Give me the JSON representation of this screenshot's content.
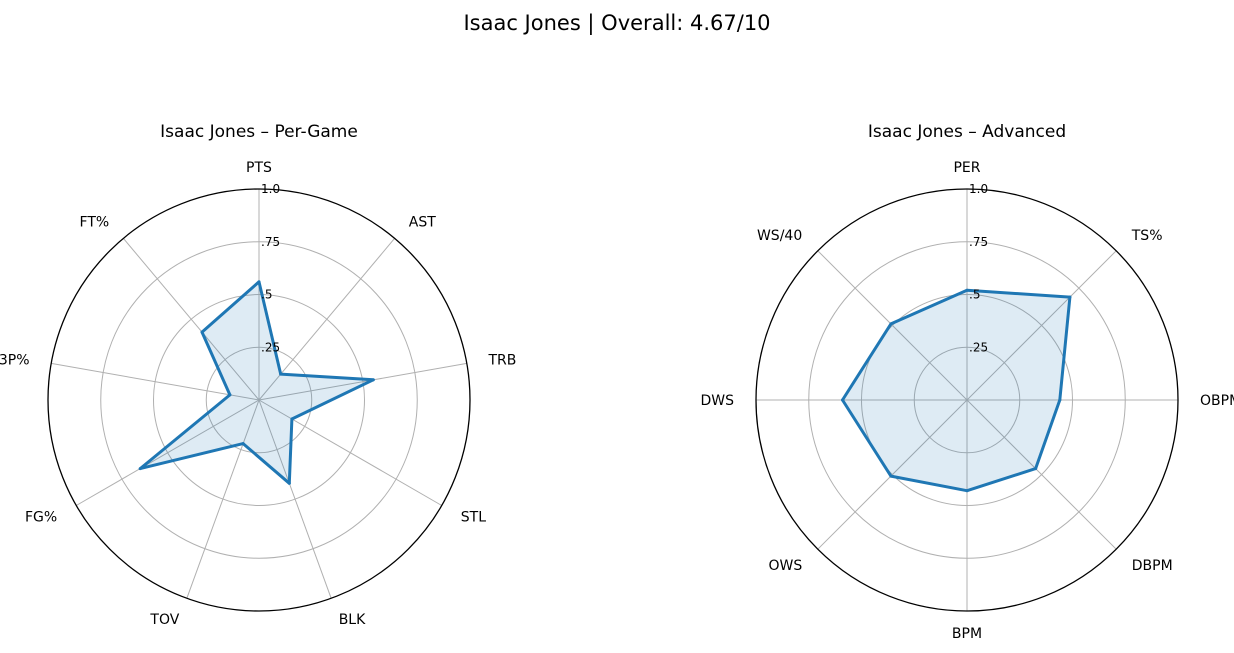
{
  "suptitle": "Isaac Jones | Overall: 4.67/10",
  "chart_data": [
    {
      "type": "radar",
      "title": "Isaac Jones – Per-Game",
      "categories": [
        "PTS",
        "AST",
        "TRB",
        "STL",
        "BLK",
        "TOV",
        "FG%",
        "3P%",
        "FT%"
      ],
      "values": [
        0.56,
        0.16,
        0.55,
        0.18,
        0.42,
        0.22,
        0.65,
        0.14,
        0.42
      ],
      "rlim": [
        0,
        1.0
      ],
      "rticks": [
        0.25,
        0.5,
        0.75,
        1.0
      ],
      "rtick_labels": [
        ".25",
        ".5",
        ".75",
        "1.0"
      ],
      "grid": true,
      "line_color": "#1f77b4",
      "fill_color": "#1f77b4"
    },
    {
      "type": "radar",
      "title": "Isaac Jones – Advanced",
      "categories": [
        "PER",
        "TS%",
        "OBPM",
        "DBPM",
        "BPM",
        "OWS",
        "DWS",
        "WS/40"
      ],
      "values": [
        0.52,
        0.69,
        0.44,
        0.46,
        0.43,
        0.51,
        0.59,
        0.51
      ],
      "rlim": [
        0,
        1.0
      ],
      "rticks": [
        0.25,
        0.5,
        0.75,
        1.0
      ],
      "rtick_labels": [
        ".25",
        ".5",
        ".75",
        "1.0"
      ],
      "grid": true,
      "line_color": "#1f77b4",
      "fill_color": "#1f77b4"
    }
  ]
}
